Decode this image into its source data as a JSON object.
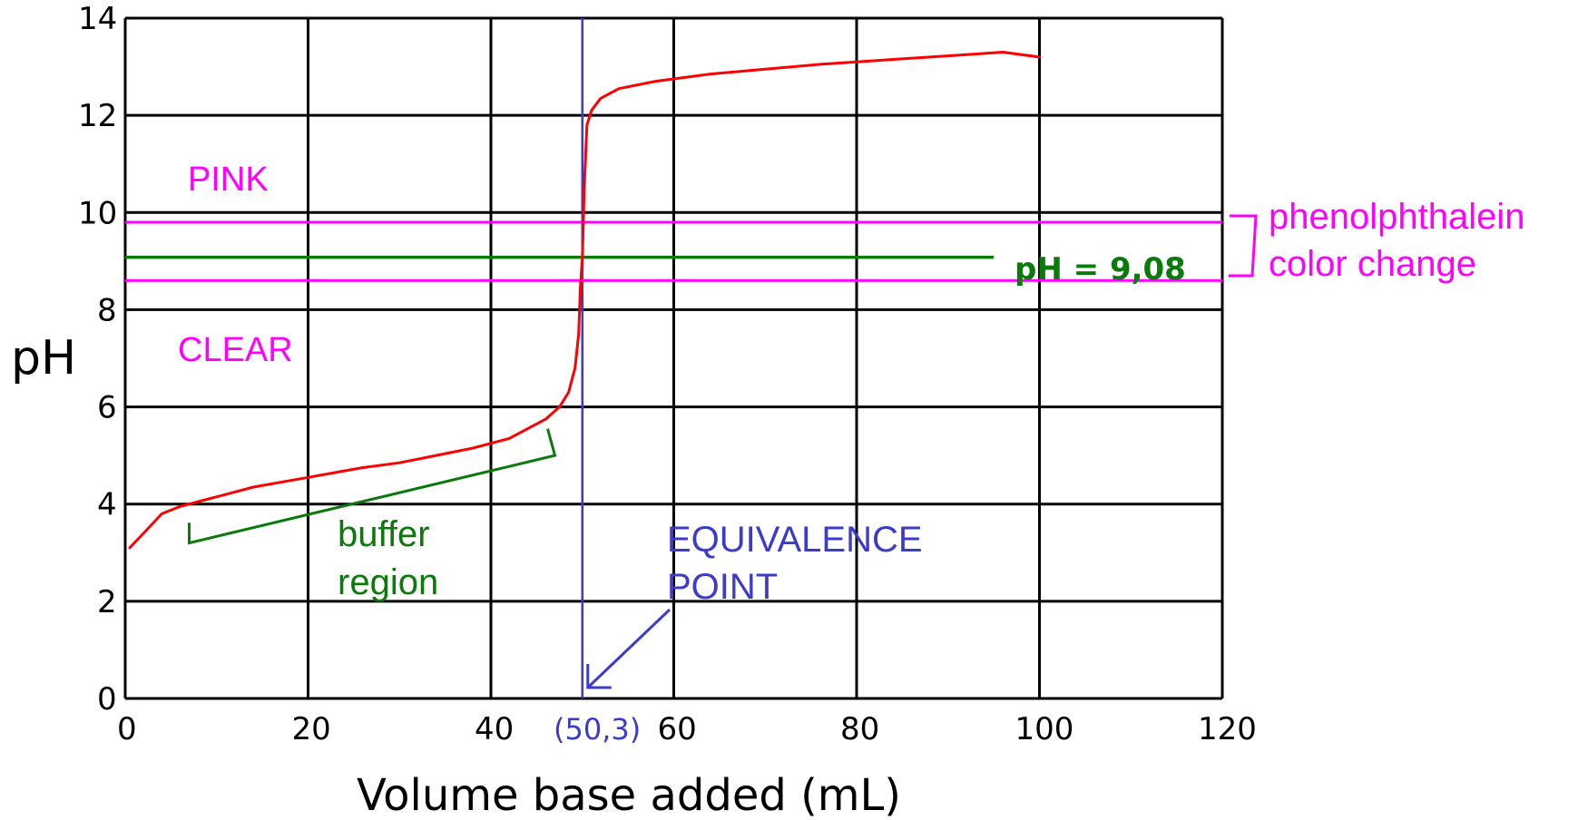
{
  "chart_data": {
    "type": "line",
    "title": "",
    "xlabel": "Volume base added (mL)",
    "ylabel": "pH",
    "xlim": [
      0,
      120
    ],
    "ylim": [
      0,
      14
    ],
    "grid": true,
    "x_ticks": [
      "0",
      "20",
      "40",
      "60",
      "80",
      "100",
      "120"
    ],
    "y_ticks": [
      "0",
      "2",
      "4",
      "6",
      "8",
      "10",
      "12",
      "14"
    ],
    "series": [
      {
        "color": "#ff0000",
        "x": [
          0.5,
          2,
          4,
          6,
          8,
          10,
          14,
          20,
          26,
          30,
          34,
          38,
          42,
          44,
          46,
          47.5,
          48.5,
          49.2,
          49.6,
          49.8,
          50,
          50.2,
          50.5,
          51,
          52,
          54,
          58,
          64,
          70,
          76,
          80,
          84,
          88,
          92,
          96,
          100
        ],
        "y": [
          3.1,
          3.4,
          3.8,
          3.95,
          4.05,
          4.15,
          4.35,
          4.55,
          4.75,
          4.85,
          5.0,
          5.15,
          5.35,
          5.55,
          5.75,
          6.0,
          6.3,
          6.8,
          7.5,
          8.5,
          9.08,
          10.5,
          11.8,
          12.1,
          12.35,
          12.55,
          12.7,
          12.85,
          12.95,
          13.05,
          13.1,
          13.15,
          13.2,
          13.25,
          13.3,
          13.2
        ]
      }
    ],
    "reference_lines": [
      {
        "orientation": "vertical",
        "x": 50,
        "color": "#3b3bcc"
      },
      {
        "orientation": "horizontal",
        "y": 9.8,
        "color": "#ff00ff"
      },
      {
        "orientation": "horizontal",
        "y": 8.6,
        "color": "#ff00ff"
      },
      {
        "orientation": "horizontal",
        "y": 9.08,
        "color": "#0a7a0a",
        "label": "pH = 9,08"
      }
    ],
    "annotations": {
      "pink": "PINK",
      "clear": "CLEAR",
      "phenolphthalein": [
        "phenolphthalein",
        "color change"
      ],
      "buffer": [
        "buffer",
        "region"
      ],
      "equivalence": [
        "EQUIVALENCE",
        "POINT"
      ],
      "equivalence_coord": "(50,3)",
      "buffer_x_range": [
        7,
        47
      ],
      "equivalence_point": [
        50,
        0
      ]
    },
    "colors": {
      "curve": "#ff0000",
      "indicator": "#ff00ff",
      "buffer": "#0a7a0a",
      "equivalence": "#3b3bcc",
      "grid": "#000000"
    }
  }
}
